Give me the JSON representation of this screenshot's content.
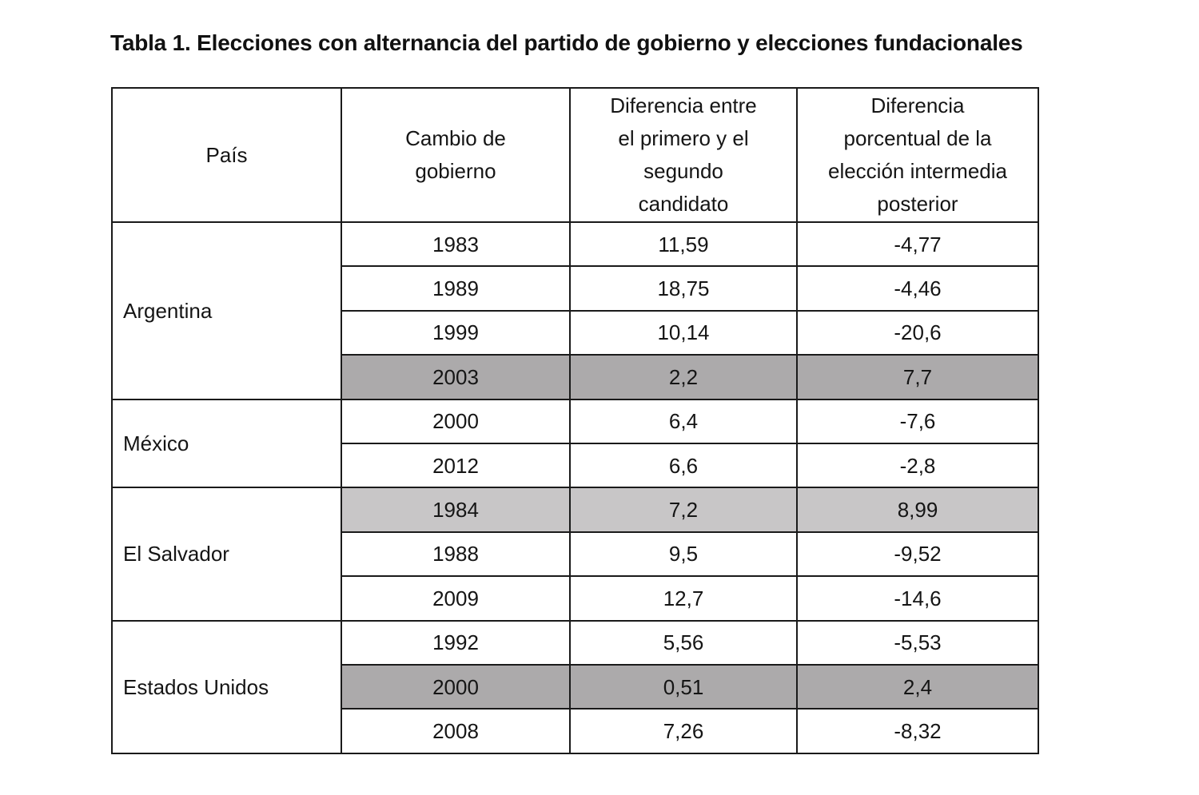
{
  "title": "Tabla 1. Elecciones con alternancia del partido de gobierno y elecciones fundacionales",
  "headers": {
    "country": "País",
    "change": [
      "Cambio de",
      "gobierno"
    ],
    "diff": [
      "Diferencia entre",
      "el primero y el",
      "segundo",
      "candidato"
    ],
    "pct": [
      "Diferencia",
      "porcentual de la",
      "elección intermedia",
      "posterior"
    ]
  },
  "groups": [
    {
      "country": "Argentina",
      "rows": [
        {
          "year": "1983",
          "diff": "11,59",
          "pct": "-4,77",
          "shade": ""
        },
        {
          "year": "1989",
          "diff": "18,75",
          "pct": "-4,46",
          "shade": ""
        },
        {
          "year": "1999",
          "diff": "10,14",
          "pct": "-20,6",
          "shade": ""
        },
        {
          "year": "2003",
          "diff": "2,2",
          "pct": "7,7",
          "shade": "dark"
        }
      ]
    },
    {
      "country": "México",
      "rows": [
        {
          "year": "2000",
          "diff": "6,4",
          "pct": "-7,6",
          "shade": ""
        },
        {
          "year": "2012",
          "diff": "6,6",
          "pct": "-2,8",
          "shade": ""
        }
      ]
    },
    {
      "country": "El Salvador",
      "rows": [
        {
          "year": "1984",
          "diff": "7,2",
          "pct": "8,99",
          "shade": "light"
        },
        {
          "year": "1988",
          "diff": "9,5",
          "pct": "-9,52",
          "shade": ""
        },
        {
          "year": "2009",
          "diff": "12,7",
          "pct": "-14,6",
          "shade": ""
        }
      ]
    },
    {
      "country": "Estados Unidos",
      "rows": [
        {
          "year": "1992",
          "diff": "5,56",
          "pct": "-5,53",
          "shade": ""
        },
        {
          "year": "2000",
          "diff": "0,51",
          "pct": "2,4",
          "shade": "dark"
        },
        {
          "year": "2008",
          "diff": "7,26",
          "pct": "-8,32",
          "shade": ""
        }
      ]
    }
  ],
  "colors": {
    "shade_dark": "#acaaab",
    "shade_light": "#c8c6c7",
    "border": "#1a1a1a",
    "text": "#111111"
  }
}
